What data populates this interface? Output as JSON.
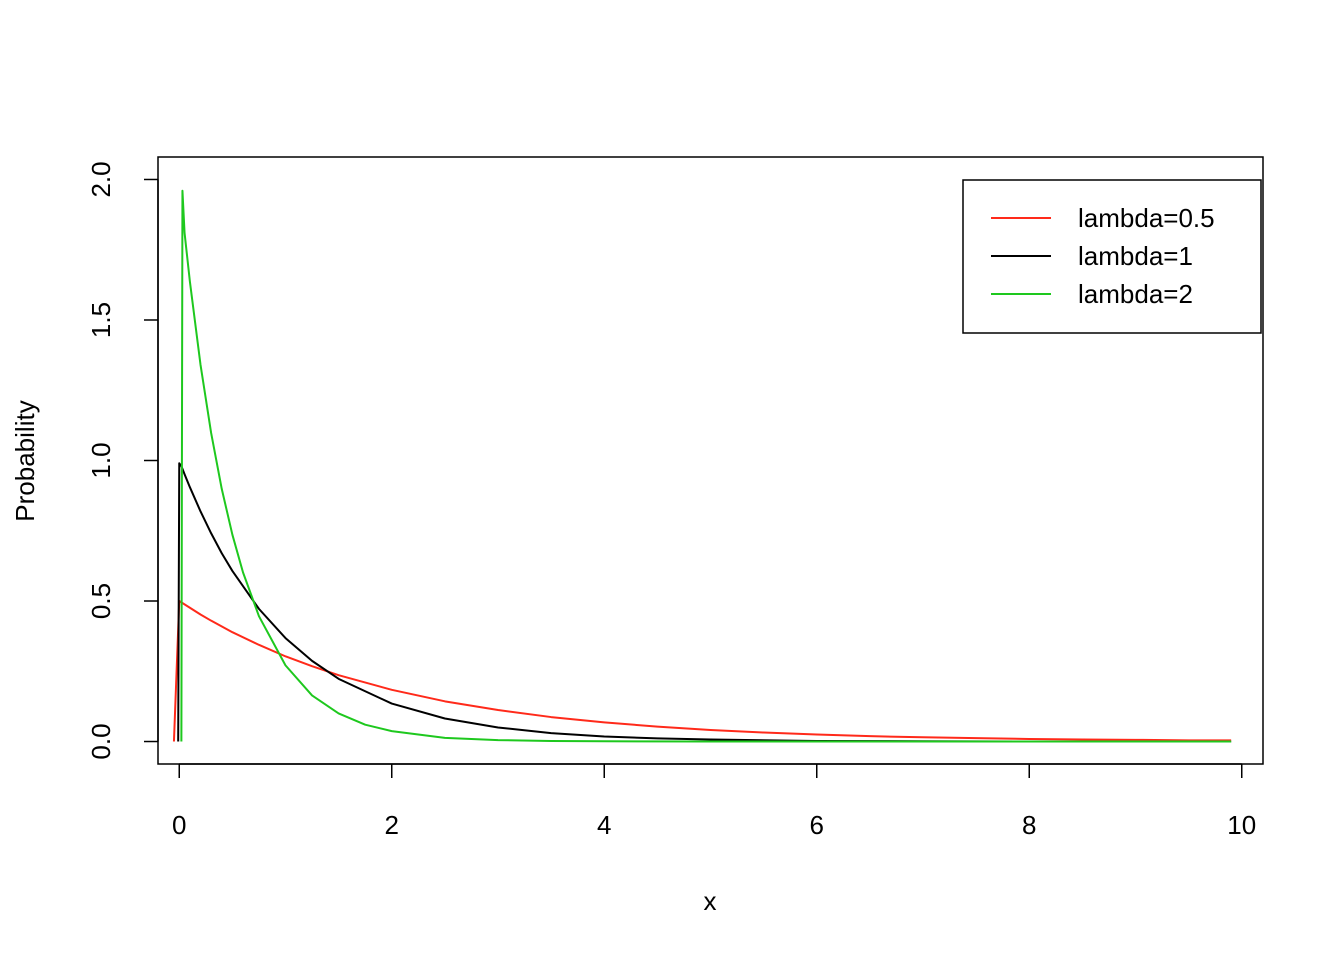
{
  "chart_data": {
    "type": "line",
    "title": "",
    "xlabel": "x",
    "ylabel": "Probability",
    "xlim": [
      -0.2,
      10.2
    ],
    "ylim": [
      -0.08,
      2.08
    ],
    "xticks": [
      0,
      2,
      4,
      6,
      8,
      10
    ],
    "xtick_labels": [
      "0",
      "2",
      "4",
      "6",
      "8",
      "10"
    ],
    "yticks": [
      0,
      0.5,
      1.0,
      1.5,
      2.0
    ],
    "ytick_labels": [
      "0.0",
      "0.5",
      "1.0",
      "1.5",
      "2.0"
    ],
    "grid": false,
    "legend_position": "top-right",
    "series": [
      {
        "name": "lambda=0.5",
        "color": "#ff2a1a",
        "x": [
          -0.05,
          0.0,
          0.02,
          0.05,
          0.1,
          0.2,
          0.3,
          0.5,
          0.75,
          1.0,
          1.25,
          1.5,
          2.0,
          2.5,
          3.0,
          3.5,
          4.0,
          4.5,
          5.0,
          5.5,
          6.0,
          6.5,
          7.0,
          7.5,
          8.0,
          8.5,
          9.0,
          9.5,
          9.9
        ],
        "y": [
          0.0,
          0.5,
          0.495,
          0.488,
          0.476,
          0.452,
          0.43,
          0.389,
          0.344,
          0.303,
          0.268,
          0.236,
          0.184,
          0.143,
          0.112,
          0.087,
          0.068,
          0.053,
          0.041,
          0.032,
          0.025,
          0.019,
          0.015,
          0.012,
          0.009,
          0.007,
          0.006,
          0.004,
          0.004
        ]
      },
      {
        "name": "lambda=1",
        "color": "#000000",
        "x": [
          -0.01,
          0.0,
          0.02,
          0.05,
          0.1,
          0.2,
          0.3,
          0.4,
          0.5,
          0.75,
          1.0,
          1.25,
          1.5,
          2.0,
          2.5,
          3.0,
          3.5,
          4.0,
          4.5,
          5.0,
          6.0,
          7.0,
          8.0,
          9.0,
          9.9
        ],
        "y": [
          0.0,
          0.99,
          0.98,
          0.951,
          0.905,
          0.819,
          0.741,
          0.67,
          0.607,
          0.472,
          0.368,
          0.287,
          0.223,
          0.135,
          0.082,
          0.05,
          0.03,
          0.018,
          0.011,
          0.007,
          0.002,
          0.001,
          0.0,
          0.0,
          0.0
        ]
      },
      {
        "name": "lambda=2",
        "color": "#1ec81e",
        "x": [
          0.02,
          0.03,
          0.05,
          0.1,
          0.2,
          0.3,
          0.4,
          0.5,
          0.6,
          0.75,
          1.0,
          1.25,
          1.5,
          1.75,
          2.0,
          2.5,
          3.0,
          3.5,
          4.0,
          5.0,
          6.0,
          8.0,
          9.9
        ],
        "y": [
          0.0,
          1.96,
          1.81,
          1.637,
          1.341,
          1.098,
          0.899,
          0.736,
          0.602,
          0.446,
          0.271,
          0.164,
          0.1,
          0.06,
          0.037,
          0.013,
          0.005,
          0.002,
          0.001,
          0.0,
          0.0,
          0.0,
          0.0
        ]
      }
    ]
  }
}
